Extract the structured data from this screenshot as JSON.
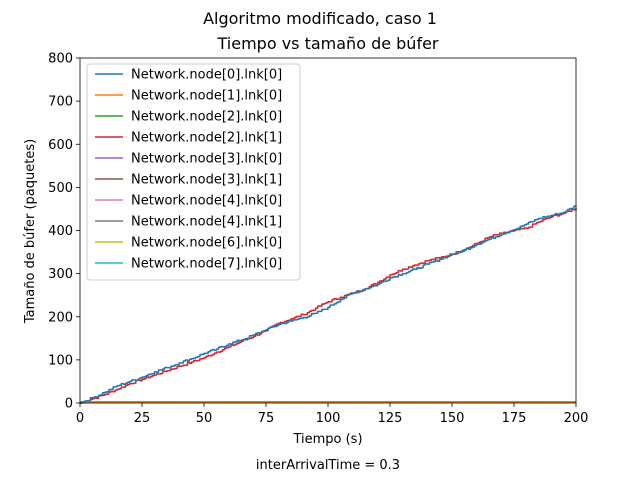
{
  "chart_data": {
    "type": "line",
    "suptitle": "Algoritmo modificado, caso 1",
    "title": "Tiempo vs tamaño de búfer",
    "xlabel": "Tiempo (s)",
    "ylabel": "Tamaño de búfer (paquetes)",
    "footnote": "interArrivalTime = 0.3",
    "xlim": [
      0,
      200
    ],
    "ylim": [
      0,
      800
    ],
    "xticks": [
      0,
      25,
      50,
      75,
      100,
      125,
      150,
      175,
      200
    ],
    "yticks": [
      0,
      100,
      200,
      300,
      400,
      500,
      600,
      700,
      800
    ],
    "grid": false,
    "legend_position": "top-left",
    "series": [
      {
        "name": "Network.node[0].lnk[0]",
        "color": "#1f77b4",
        "x": [
          0,
          5,
          10,
          15,
          20,
          25,
          30,
          35,
          40,
          45,
          50,
          55,
          60,
          65,
          70,
          75,
          80,
          85,
          90,
          95,
          100,
          105,
          110,
          115,
          120,
          125,
          130,
          135,
          140,
          145,
          150,
          155,
          160,
          165,
          170,
          175,
          180,
          185,
          190,
          195,
          200
        ],
        "y": [
          0,
          12,
          25,
          40,
          50,
          60,
          72,
          82,
          93,
          103,
          115,
          125,
          137,
          146,
          158,
          170,
          182,
          190,
          198,
          208,
          222,
          240,
          255,
          265,
          275,
          290,
          300,
          310,
          322,
          333,
          345,
          355,
          368,
          380,
          392,
          402,
          415,
          428,
          435,
          442,
          458
        ]
      },
      {
        "name": "Network.node[1].lnk[0]",
        "color": "#ff7f0e",
        "x": [
          0,
          200
        ],
        "y": [
          0,
          0
        ]
      },
      {
        "name": "Network.node[2].lnk[0]",
        "color": "#2ca02c",
        "x": [
          0,
          200
        ],
        "y": [
          0,
          0
        ]
      },
      {
        "name": "Network.node[2].lnk[1]",
        "color": "#d62728",
        "x": [
          0,
          5,
          10,
          15,
          20,
          25,
          30,
          35,
          40,
          45,
          50,
          55,
          60,
          65,
          70,
          75,
          80,
          85,
          90,
          95,
          100,
          105,
          110,
          115,
          120,
          125,
          130,
          135,
          140,
          145,
          150,
          155,
          160,
          165,
          170,
          175,
          180,
          185,
          190,
          195,
          200
        ],
        "y": [
          0,
          10,
          20,
          32,
          45,
          55,
          65,
          75,
          85,
          95,
          105,
          118,
          130,
          143,
          155,
          168,
          185,
          195,
          205,
          220,
          235,
          245,
          255,
          265,
          280,
          297,
          310,
          320,
          330,
          337,
          345,
          356,
          370,
          385,
          393,
          400,
          405,
          420,
          432,
          440,
          452
        ]
      },
      {
        "name": "Network.node[3].lnk[0]",
        "color": "#9467bd",
        "x": [
          0,
          200
        ],
        "y": [
          0,
          0
        ]
      },
      {
        "name": "Network.node[3].lnk[1]",
        "color": "#8c564b",
        "x": [
          0,
          200
        ],
        "y": [
          0,
          0
        ]
      },
      {
        "name": "Network.node[4].lnk[0]",
        "color": "#e377c2",
        "x": [
          0,
          200
        ],
        "y": [
          0,
          0
        ]
      },
      {
        "name": "Network.node[4].lnk[1]",
        "color": "#7f7f7f",
        "x": [
          0,
          200
        ],
        "y": [
          0,
          0
        ]
      },
      {
        "name": "Network.node[6].lnk[0]",
        "color": "#bcbd22",
        "x": [
          0,
          200
        ],
        "y": [
          0,
          0
        ]
      },
      {
        "name": "Network.node[7].lnk[0]",
        "color": "#17becf",
        "x": [
          0,
          200
        ],
        "y": [
          0,
          0
        ]
      }
    ]
  }
}
